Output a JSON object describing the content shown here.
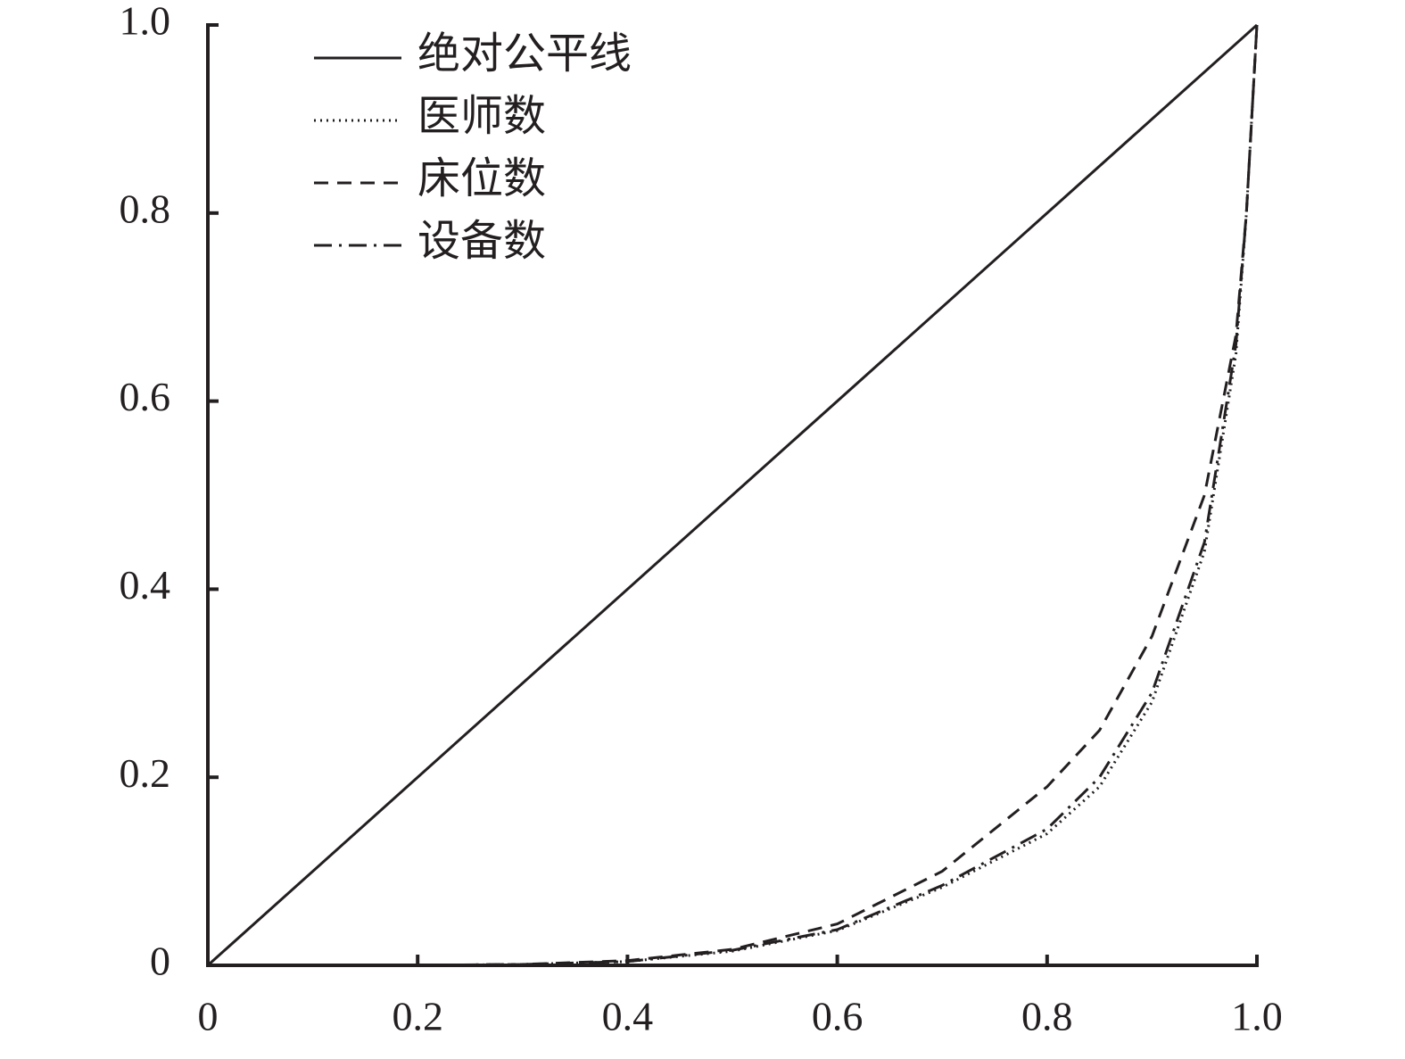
{
  "chart_data": {
    "type": "line",
    "xlim": [
      0,
      1
    ],
    "ylim": [
      0,
      1
    ],
    "xticks": [
      0,
      0.2,
      0.4,
      0.6,
      0.8,
      {
        "value": 1,
        "label": "1.0"
      }
    ],
    "yticks": [
      0,
      0.2,
      0.4,
      0.6,
      0.8,
      {
        "value": 1,
        "label": "1.0"
      }
    ],
    "legend": "upper left",
    "series": [
      {
        "name": "绝对公平线",
        "color": "#231f20",
        "dash": "solid",
        "x": [
          0,
          1
        ],
        "values": [
          0,
          1
        ]
      },
      {
        "name": "医师数",
        "color": "#231f20",
        "dash": "dotted",
        "x": [
          0,
          0.1,
          0.2,
          0.3,
          0.4,
          0.5,
          0.6,
          0.7,
          0.8,
          0.85,
          0.9,
          0.95,
          0.98,
          0.99,
          1
        ],
        "values": [
          0,
          0,
          0,
          0.001,
          0.004,
          0.015,
          0.037,
          0.083,
          0.14,
          0.19,
          0.28,
          0.44,
          0.65,
          0.8,
          1
        ]
      },
      {
        "name": "床位数",
        "color": "#231f20",
        "dash": "dashed",
        "x": [
          0,
          0.1,
          0.2,
          0.3,
          0.4,
          0.5,
          0.6,
          0.7,
          0.8,
          0.85,
          0.9,
          0.95,
          0.98,
          0.99,
          1
        ],
        "values": [
          0,
          0,
          0,
          0.001,
          0.005,
          0.017,
          0.044,
          0.1,
          0.19,
          0.25,
          0.35,
          0.5,
          0.67,
          0.8,
          1
        ]
      },
      {
        "name": "设备数",
        "color": "#231f20",
        "dash": "dashdot",
        "x": [
          0,
          0.1,
          0.2,
          0.3,
          0.4,
          0.5,
          0.6,
          0.7,
          0.8,
          0.85,
          0.9,
          0.95,
          0.98,
          0.99,
          1
        ],
        "values": [
          0,
          0,
          0,
          0.001,
          0.004,
          0.016,
          0.038,
          0.085,
          0.145,
          0.2,
          0.29,
          0.45,
          0.66,
          0.8,
          1
        ]
      }
    ]
  }
}
